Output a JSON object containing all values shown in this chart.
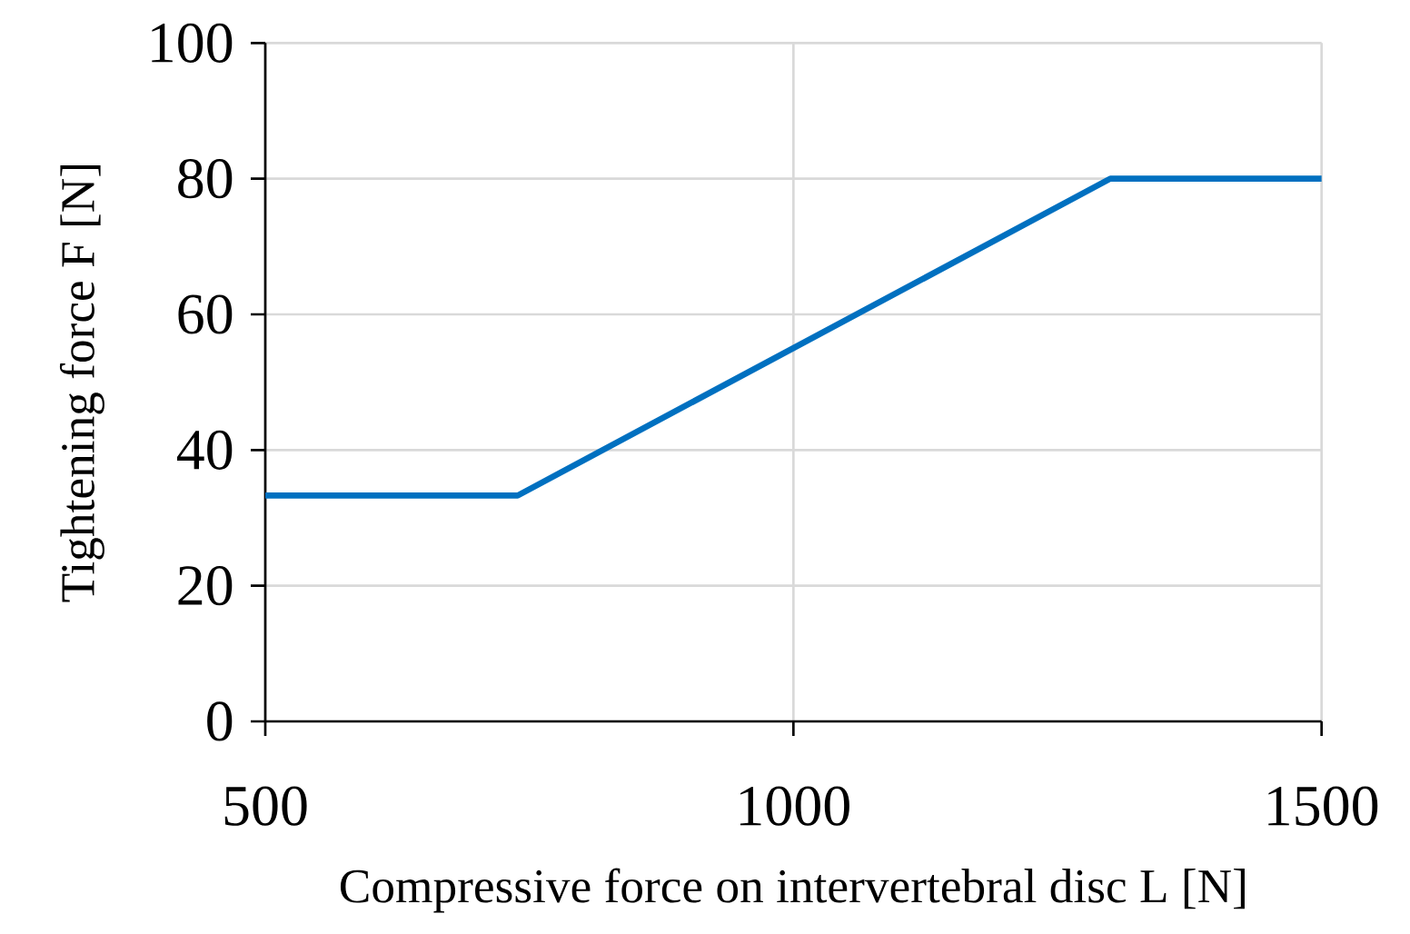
{
  "chart_data": {
    "type": "line",
    "xlabel": "Compressive force on intervertebral disc L [N]",
    "ylabel": "Tightening force F [N]",
    "x": [
      500,
      739,
      1300,
      1500
    ],
    "series": [
      {
        "color": "#0070c0",
        "values": [
          33.3,
          33.3,
          80,
          80
        ]
      }
    ],
    "xlim": [
      500,
      1500
    ],
    "ylim": [
      0,
      100
    ],
    "xticks": [
      500,
      1000,
      1500
    ],
    "yticks": [
      0,
      20,
      40,
      60,
      80,
      100
    ],
    "grid": true,
    "marker": "none",
    "line_style": "solid"
  }
}
